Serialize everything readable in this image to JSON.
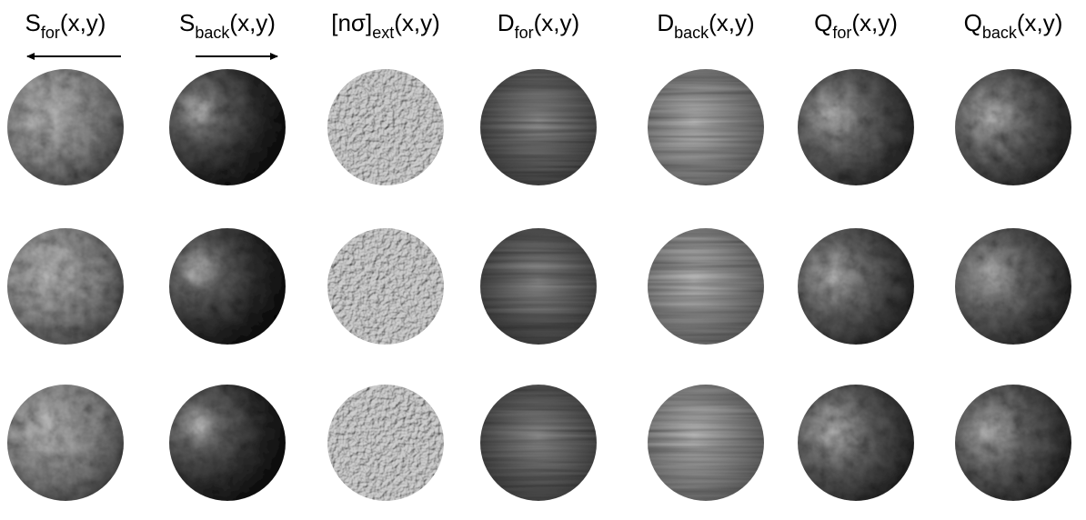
{
  "columns": [
    {
      "base": "S",
      "sub": "for",
      "args": "(x,y)"
    },
    {
      "base": "S",
      "sub": "back",
      "args": "(x,y)"
    },
    {
      "base": "[nσ]",
      "sub": "ext",
      "args": "(x,y)"
    },
    {
      "base": "D",
      "sub": "for",
      "args": "(x,y)"
    },
    {
      "base": "D",
      "sub": "back",
      "args": "(x,y)"
    },
    {
      "base": "Q",
      "sub": "for",
      "args": "(x,y)"
    },
    {
      "base": "Q",
      "sub": "back",
      "args": "(x,y)"
    }
  ]
}
